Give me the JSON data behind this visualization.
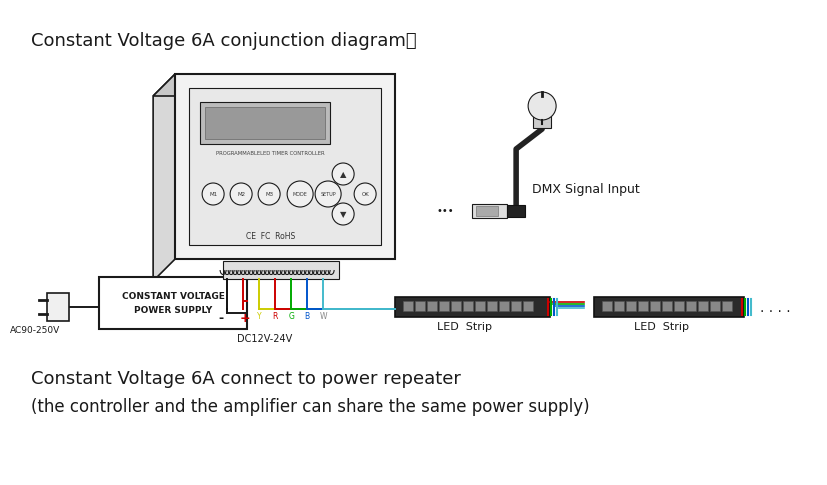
{
  "title1": "Constant Voltage 6A conjunction diagram：",
  "title2": "Constant Voltage 6A connect to power repeater",
  "title3": "(the controller and the amplifier can share the same power supply)",
  "dmx_label": "DMX Signal Input",
  "led_strip_label": "LED  Strip",
  "ac_label": "AC90-250V",
  "dc_label": "DC12V-24V",
  "minus_label": "-",
  "plus_label": "+",
  "psu_label1": "CONSTANT VOLTAGE",
  "psu_label2": "POWER SUPPLY",
  "controller_label": "PROGRAMMABLELED TIMER CONTROLLER",
  "cert_label": "CE  FC  RoHS",
  "bg_color": "#ffffff",
  "line_color": "#1a1a1a",
  "red_color": "#cc0000",
  "yellow_color": "#cccc00",
  "green_color": "#00aa00",
  "blue_color": "#0055cc",
  "cyan_color": "#44bbcc",
  "gray_color": "#888888"
}
